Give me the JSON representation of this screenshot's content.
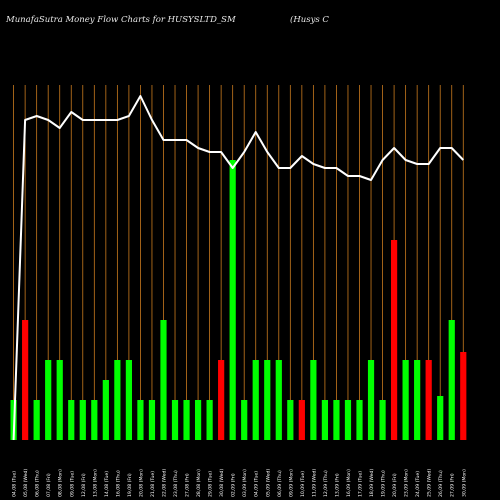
{
  "header": {
    "left_title": "MunafaSutra  Money Flow  Charts for HUSYSLTD_SM",
    "right_title": "(Husys C"
  },
  "chart_data": {
    "type": "bar",
    "bar_ylim": [
      0,
      100
    ],
    "price_ylim": [
      0,
      100
    ],
    "colors": {
      "up": "#00ff00",
      "down": "#ff0000",
      "grid": "#c87a1e",
      "line": "#ffffff",
      "background": "#000000"
    },
    "categories": [
      "04,08 (Tue)",
      "05,08 (Wed)",
      "06,08 (Thu)",
      "07,08 (Fri)",
      "08,08 (Mon)",
      "09,08 (Tue)",
      "12,08 (Fri)",
      "13,08 (Mon)",
      "14,08 (Tue)",
      "16,08 (Thu)",
      "19,08 (Fri)",
      "20,08 (Mon)",
      "21,08 (Tue)",
      "22,08 (Wed)",
      "23,08 (Thu)",
      "27,08 (Fri)",
      "28,08 (Mon)",
      "29,08 (Tue)",
      "30,08 (Wed)",
      "02,09 (Fri)",
      "03,09 (Mon)",
      "04,09 (Tue)",
      "05,09 (Wed)",
      "06,09 (Thu)",
      "09,09 (Mon)",
      "10,09 (Tue)",
      "11,09 (Wed)",
      "12,09 (Thu)",
      "13,09 (Fri)",
      "16,09 (Mon)",
      "17,09 (Tue)",
      "18,09 (Wed)",
      "19,09 (Thu)",
      "20,09 (Fri)",
      "23,09 (Mon)",
      "24,09 (Tue)",
      "25,09 (Wed)",
      "26,09 (Thu)",
      "27,09 (Fri)",
      "30,09 (Mon)"
    ],
    "bar_values": [
      10,
      30,
      10,
      20,
      20,
      10,
      10,
      10,
      15,
      20,
      20,
      10,
      10,
      30,
      10,
      10,
      10,
      10,
      20,
      70,
      10,
      20,
      20,
      20,
      10,
      10,
      20,
      10,
      10,
      10,
      10,
      20,
      10,
      50,
      20,
      20,
      20,
      11,
      30,
      22
    ],
    "bar_directions": [
      "up",
      "down",
      "up",
      "up",
      "up",
      "up",
      "up",
      "up",
      "up",
      "up",
      "up",
      "up",
      "up",
      "up",
      "up",
      "up",
      "up",
      "up",
      "down",
      "up",
      "up",
      "up",
      "up",
      "up",
      "up",
      "down",
      "up",
      "up",
      "up",
      "up",
      "up",
      "up",
      "up",
      "down",
      "up",
      "up",
      "down",
      "up",
      "up",
      "down"
    ],
    "price_values": [
      0,
      80,
      81,
      80,
      78,
      82,
      80,
      80,
      80,
      80,
      81,
      86,
      80,
      75,
      75,
      75,
      73,
      72,
      72,
      68,
      72,
      77,
      72,
      68,
      68,
      71,
      69,
      68,
      68,
      66,
      66,
      65,
      70,
      73,
      70,
      69,
      69,
      73,
      73,
      70
    ]
  }
}
